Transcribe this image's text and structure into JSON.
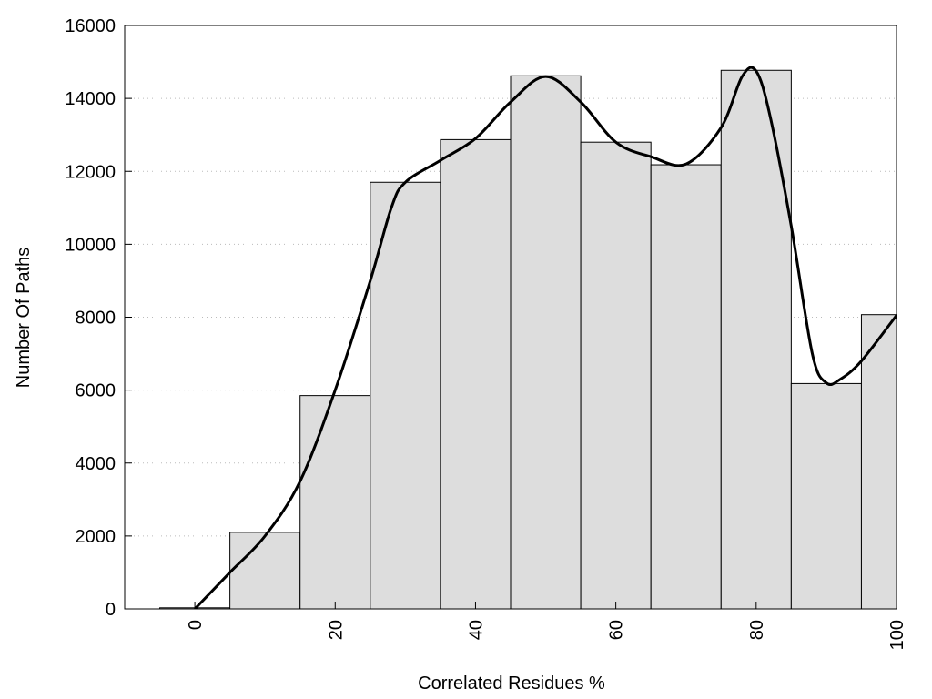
{
  "chart_data": {
    "type": "histogram",
    "xlabel": "Correlated Residues %",
    "ylabel": "Number Of Paths",
    "bins": [
      -5,
      5,
      15,
      25,
      35,
      45,
      55,
      65,
      75,
      85,
      95,
      105
    ],
    "values": [
      30,
      2100,
      5850,
      11700,
      12870,
      14620,
      12800,
      12180,
      14770,
      6180,
      8070
    ],
    "color": "#dddddd",
    "curve": {
      "color": "#000000",
      "x": [
        0,
        5,
        10,
        15,
        20,
        25,
        28,
        30,
        35,
        40,
        45,
        50,
        55,
        60,
        65,
        70,
        75,
        78,
        80,
        82,
        85,
        88,
        90,
        92,
        95,
        100
      ],
      "values": [
        0,
        1000,
        2000,
        3500,
        6000,
        9000,
        11000,
        11700,
        12300,
        12900,
        13900,
        14600,
        13900,
        12800,
        12400,
        12200,
        13200,
        14600,
        14750,
        13500,
        10500,
        7000,
        6200,
        6300,
        6800,
        8050
      ]
    },
    "xlim": [
      -10,
      100
    ],
    "xticks": [
      0,
      20,
      40,
      60,
      80,
      100
    ],
    "ylim": [
      0,
      16000
    ],
    "yticks": [
      0,
      2000,
      4000,
      6000,
      8000,
      10000,
      12000,
      14000,
      16000
    ],
    "grid": true
  }
}
